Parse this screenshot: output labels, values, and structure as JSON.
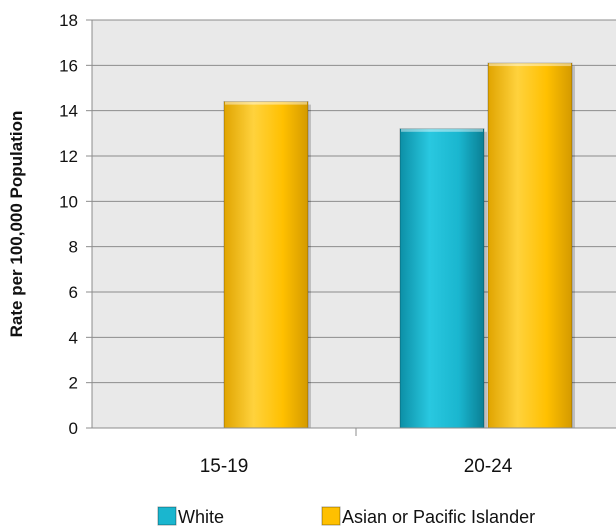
{
  "chart_data": {
    "type": "bar",
    "title": "",
    "xlabel": "",
    "ylabel": "Rate per 100,000 Population",
    "categories": [
      "15-19",
      "20-24"
    ],
    "ylim": [
      0,
      18
    ],
    "yticks": [
      0,
      2,
      4,
      6,
      8,
      10,
      12,
      14,
      16,
      18
    ],
    "grid": true,
    "legend_position": "bottom",
    "series": [
      {
        "name": "White",
        "color": "#1ab6cf",
        "values": [
          null,
          13.2
        ]
      },
      {
        "name": "Asian or Pacific Islander",
        "color": "#ffc000",
        "values": [
          14.4,
          16.1
        ]
      }
    ]
  }
}
